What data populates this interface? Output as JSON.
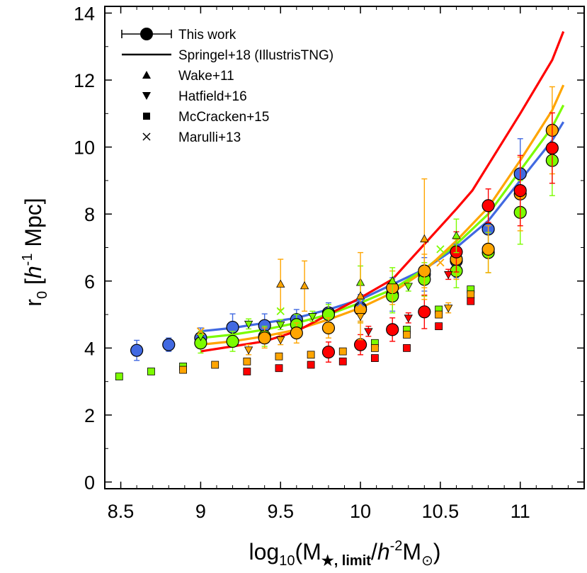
{
  "chart_data": {
    "type": "scatter",
    "xlim": [
      8.4,
      11.4
    ],
    "ylim": [
      -0.2,
      14.2
    ],
    "x_ticks": [
      8.5,
      9,
      9.5,
      10,
      10.5,
      11
    ],
    "x_tick_labels": [
      "8.5",
      "9",
      "9.5",
      "10",
      "10.5",
      "11"
    ],
    "y_ticks": [
      0,
      2,
      4,
      6,
      8,
      10,
      12,
      14
    ],
    "y_tick_labels": [
      "0",
      "2",
      "4",
      "6",
      "8",
      "10",
      "12",
      "14"
    ],
    "xlabel": {
      "pre": "log",
      "sub": "10",
      "open": "(M",
      "star": "★, limit",
      "slash": "/",
      "h": "h",
      "exp": "-2",
      "m": "M",
      "sun": "⊙",
      "close": ")"
    },
    "ylabel": {
      "r": "r",
      "sub": "0",
      "open": " [",
      "h": "h",
      "exp": "-1",
      "unit": " Mpc]"
    },
    "legend": [
      {
        "label": "This work",
        "marker": "circle-errorbar"
      },
      {
        "label": "Springel+18 (IllustrisTNG)",
        "marker": "line"
      },
      {
        "label": "Wake+11",
        "marker": "triangle-up"
      },
      {
        "label": "Hatfield+16",
        "marker": "triangle-down"
      },
      {
        "label": "McCracken+15",
        "marker": "square"
      },
      {
        "label": "Marulli+13",
        "marker": "cross"
      }
    ],
    "colors": {
      "blue": "#4169e1",
      "green": "#7cfc00",
      "orange": "#ffa500",
      "red": "#ff0000"
    },
    "models": [
      {
        "name": "Springel+18 blue",
        "color": "#4169e1",
        "x": [
          9.0,
          9.2,
          9.4,
          9.6,
          9.8,
          10.0,
          10.2,
          10.4,
          10.6,
          10.8,
          11.0,
          11.2,
          11.27
        ],
        "y": [
          4.5,
          4.6,
          4.75,
          4.9,
          5.15,
          5.45,
          5.9,
          6.35,
          7.0,
          7.8,
          9.0,
          10.2,
          10.75
        ]
      },
      {
        "name": "Springel+18 green",
        "color": "#7cfc00",
        "x": [
          9.0,
          9.2,
          9.4,
          9.6,
          9.8,
          10.0,
          10.2,
          10.4,
          10.6,
          10.8,
          11.0,
          11.2,
          11.27
        ],
        "y": [
          4.3,
          4.4,
          4.55,
          4.75,
          5.0,
          5.35,
          5.75,
          6.35,
          7.1,
          8.0,
          9.3,
          10.6,
          11.25
        ]
      },
      {
        "name": "Springel+18 orange",
        "color": "#ffa500",
        "x": [
          9.0,
          9.2,
          9.4,
          9.6,
          9.8,
          10.0,
          10.2,
          10.4,
          10.6,
          10.8,
          11.0,
          11.2,
          11.27
        ],
        "y": [
          4.1,
          4.2,
          4.35,
          4.55,
          4.85,
          5.2,
          5.65,
          6.3,
          7.2,
          8.2,
          9.6,
          11.1,
          11.85
        ]
      },
      {
        "name": "Springel+18 red",
        "color": "#ff0000",
        "x": [
          9.0,
          9.2,
          9.4,
          9.6,
          9.8,
          10.0,
          10.2,
          10.4,
          10.6,
          10.7,
          11.0,
          11.2,
          11.27
        ],
        "y": [
          3.9,
          4.05,
          4.2,
          4.5,
          5.0,
          5.5,
          6.05,
          7.1,
          8.15,
          8.7,
          11.0,
          12.6,
          13.45
        ]
      }
    ],
    "series": [
      {
        "name": "This work blue",
        "color": "#4169e1",
        "marker": "circle",
        "x": [
          8.6,
          8.8,
          9.0,
          9.2,
          9.4,
          9.6,
          9.8,
          10.0,
          10.2,
          10.4,
          10.6,
          10.8,
          11.0
        ],
        "y": [
          3.93,
          4.1,
          4.3,
          4.62,
          4.67,
          4.85,
          5.05,
          5.2,
          5.6,
          6.2,
          6.6,
          7.55,
          9.2
        ],
        "err": [
          0.3,
          0.2,
          0.3,
          0.4,
          0.35,
          0.3,
          0.3,
          0.4,
          0.5,
          0.5,
          0.5,
          0.6,
          1.05
        ]
      },
      {
        "name": "This work green",
        "color": "#7cfc00",
        "marker": "circle",
        "x": [
          9.0,
          9.2,
          9.4,
          9.6,
          9.8,
          10.0,
          10.2,
          10.4,
          10.6,
          10.8,
          11.0,
          11.2
        ],
        "y": [
          4.15,
          4.2,
          4.35,
          4.7,
          5.0,
          5.15,
          5.55,
          6.05,
          6.3,
          6.85,
          8.05,
          9.6
        ],
        "err": [
          0.3,
          0.3,
          0.3,
          0.3,
          0.3,
          0.4,
          0.5,
          0.5,
          0.5,
          0.6,
          0.95,
          1.05
        ]
      },
      {
        "name": "This work orange",
        "color": "#ffa500",
        "marker": "circle",
        "x": [
          9.4,
          9.6,
          9.8,
          10.0,
          10.2,
          10.4,
          10.6,
          10.8,
          11.0,
          11.2
        ],
        "y": [
          4.3,
          4.45,
          4.6,
          5.15,
          5.8,
          6.3,
          6.65,
          6.95,
          8.6,
          10.5
        ],
        "err": [
          0.3,
          0.3,
          0.3,
          0.4,
          0.5,
          0.5,
          0.6,
          0.7,
          1.1,
          1.3
        ]
      },
      {
        "name": "This work red",
        "color": "#ff0000",
        "marker": "circle",
        "x": [
          9.8,
          10.0,
          10.2,
          10.4,
          10.6,
          10.8,
          11.0,
          11.2
        ],
        "y": [
          3.88,
          4.1,
          4.55,
          5.08,
          6.87,
          8.25,
          8.7,
          9.97
        ],
        "err": [
          0.3,
          0.3,
          0.35,
          0.5,
          0.6,
          0.5,
          1.05,
          1.05
        ]
      },
      {
        "name": "Wake+11",
        "marker": "triangle-up",
        "points": [
          {
            "x": 9.5,
            "y": 5.9,
            "color": "#ffa500",
            "err": 0.75
          },
          {
            "x": 9.65,
            "y": 5.85,
            "color": "#ffa500",
            "err": 0.75
          },
          {
            "x": 10.0,
            "y": 5.95,
            "color": "#7cfc00",
            "err": 0.5
          },
          {
            "x": 10.0,
            "y": 5.55,
            "color": "#ffa500",
            "err": 1.3
          },
          {
            "x": 10.2,
            "y": 6.0,
            "color": "#7cfc00",
            "err": 0.4
          },
          {
            "x": 10.4,
            "y": 7.25,
            "color": "#ffa500",
            "err": 1.8
          },
          {
            "x": 10.6,
            "y": 7.35,
            "color": "#7cfc00",
            "err": 0.5
          }
        ]
      },
      {
        "name": "Hatfield+16",
        "marker": "triangle-down",
        "points": [
          {
            "x": 9.0,
            "y": 4.35,
            "color": "#7cfc00",
            "err": 0.15
          },
          {
            "x": 9.3,
            "y": 4.72,
            "color": "#7cfc00",
            "err": 0.15
          },
          {
            "x": 9.3,
            "y": 3.95,
            "color": "#ffa500",
            "err": 0.15
          },
          {
            "x": 9.5,
            "y": 4.7,
            "color": "#7cfc00",
            "err": 0.15
          },
          {
            "x": 9.5,
            "y": 4.25,
            "color": "#ffa500",
            "err": 0.15
          },
          {
            "x": 9.7,
            "y": 4.95,
            "color": "#7cfc00",
            "err": 0.15
          },
          {
            "x": 10.0,
            "y": 4.95,
            "color": "#ffa500",
            "err": 0.15
          },
          {
            "x": 10.05,
            "y": 4.5,
            "color": "#ff0000",
            "err": 0.15
          },
          {
            "x": 10.3,
            "y": 5.85,
            "color": "#7cfc00",
            "err": 0.15
          },
          {
            "x": 10.3,
            "y": 4.9,
            "color": "#ff0000",
            "err": 0.15
          },
          {
            "x": 10.55,
            "y": 5.2,
            "color": "#ffa500",
            "err": 0.15
          },
          {
            "x": 10.55,
            "y": 6.2,
            "color": "#ff0000",
            "err": 0.15
          }
        ]
      },
      {
        "name": "McCracken+15",
        "marker": "square",
        "points": [
          {
            "x": 8.49,
            "y": 3.15,
            "color": "#7cfc00"
          },
          {
            "x": 8.69,
            "y": 3.3,
            "color": "#7cfc00"
          },
          {
            "x": 8.89,
            "y": 3.45,
            "color": "#7cfc00"
          },
          {
            "x": 8.89,
            "y": 3.35,
            "color": "#ffa500"
          },
          {
            "x": 9.09,
            "y": 3.5,
            "color": "#ffa500"
          },
          {
            "x": 9.29,
            "y": 3.6,
            "color": "#ffa500"
          },
          {
            "x": 9.29,
            "y": 3.3,
            "color": "#ff0000"
          },
          {
            "x": 9.49,
            "y": 3.75,
            "color": "#ffa500"
          },
          {
            "x": 9.49,
            "y": 3.4,
            "color": "#ff0000"
          },
          {
            "x": 9.69,
            "y": 3.8,
            "color": "#ffa500"
          },
          {
            "x": 9.69,
            "y": 3.5,
            "color": "#ff0000"
          },
          {
            "x": 9.89,
            "y": 3.9,
            "color": "#ffa500"
          },
          {
            "x": 9.89,
            "y": 3.6,
            "color": "#ff0000"
          },
          {
            "x": 10.09,
            "y": 4.15,
            "color": "#7cfc00"
          },
          {
            "x": 10.09,
            "y": 4.0,
            "color": "#ffa500"
          },
          {
            "x": 10.09,
            "y": 3.7,
            "color": "#ff0000"
          },
          {
            "x": 10.29,
            "y": 4.55,
            "color": "#7cfc00"
          },
          {
            "x": 10.29,
            "y": 4.4,
            "color": "#ffa500"
          },
          {
            "x": 10.29,
            "y": 4.0,
            "color": "#ff0000"
          },
          {
            "x": 10.49,
            "y": 5.15,
            "color": "#7cfc00"
          },
          {
            "x": 10.49,
            "y": 5.0,
            "color": "#ffa500"
          },
          {
            "x": 10.49,
            "y": 4.65,
            "color": "#ff0000"
          },
          {
            "x": 10.69,
            "y": 5.75,
            "color": "#7cfc00"
          },
          {
            "x": 10.69,
            "y": 5.6,
            "color": "#ffa500"
          },
          {
            "x": 10.69,
            "y": 5.4,
            "color": "#ff0000"
          }
        ]
      },
      {
        "name": "Marulli+13",
        "marker": "cross",
        "points": [
          {
            "x": 9.0,
            "y": 4.5,
            "color": "#ffa500"
          },
          {
            "x": 9.5,
            "y": 5.1,
            "color": "#7cfc00"
          },
          {
            "x": 10.0,
            "y": 5.35,
            "color": "#4169e1"
          },
          {
            "x": 10.5,
            "y": 6.55,
            "color": "#ffa500"
          },
          {
            "x": 10.5,
            "y": 6.95,
            "color": "#7cfc00"
          }
        ]
      }
    ]
  }
}
